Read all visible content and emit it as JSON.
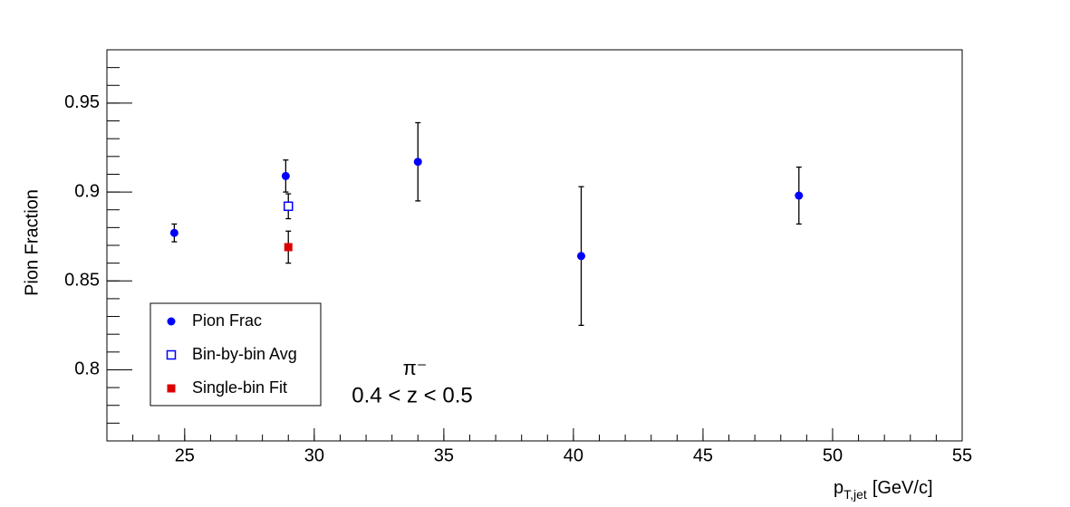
{
  "chart_data": {
    "type": "scatter",
    "y_label": "Pion Fraction",
    "x_label": {
      "main": "p",
      "sub": "T,jet",
      "unit": "[GeV/c]"
    },
    "annotations": [
      "π⁻",
      "0.4 < z < 0.5"
    ],
    "xlim": [
      22,
      55
    ],
    "ylim": [
      0.76,
      0.98
    ],
    "xticks": [
      25,
      30,
      35,
      40,
      45,
      50,
      55
    ],
    "yticks": [
      0.8,
      0.85,
      0.9,
      0.95
    ],
    "series": [
      {
        "name": "Pion Frac",
        "color": "#0000ff",
        "marker": "circle",
        "x": [
          24.6,
          28.9,
          34.0,
          40.3,
          48.7
        ],
        "values": [
          0.877,
          0.909,
          0.917,
          0.864,
          0.898
        ],
        "errors": [
          0.005,
          0.009,
          0.022,
          0.039,
          0.016
        ]
      },
      {
        "name": "Bin-by-bin Avg",
        "color": "#0000ff",
        "marker": "open-square",
        "x": [
          29.0
        ],
        "values": [
          0.892
        ],
        "errors": [
          0.007
        ]
      },
      {
        "name": "Single-bin Fit",
        "color": "#dd0000",
        "marker": "square",
        "x": [
          29.0
        ],
        "values": [
          0.869
        ],
        "errors": [
          0.009
        ]
      }
    ]
  }
}
